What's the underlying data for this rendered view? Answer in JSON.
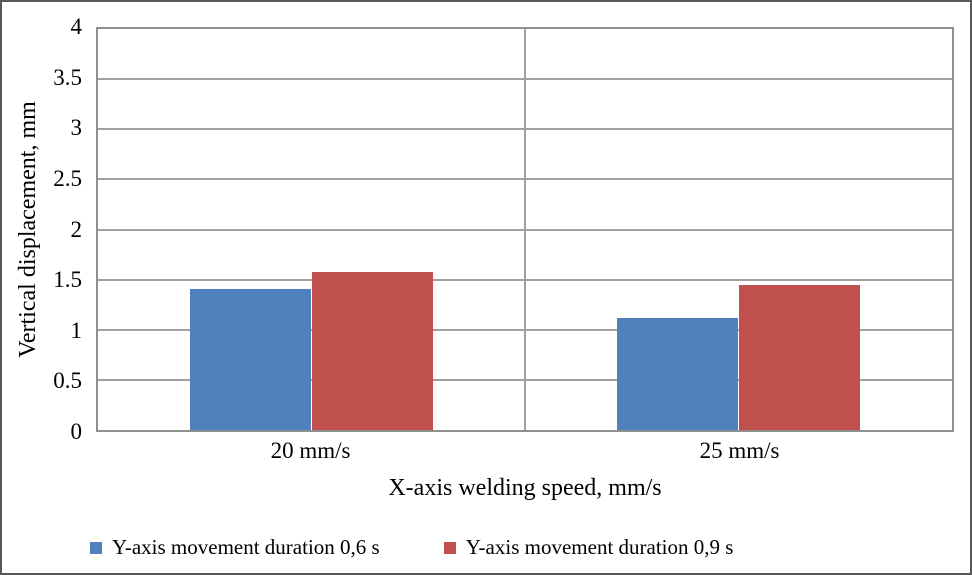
{
  "figure": {
    "background": "#ffffff",
    "outer_border_color": "#595959"
  },
  "chart_data": {
    "type": "bar",
    "title": "",
    "categories": [
      "20 mm/s",
      "25 mm/s"
    ],
    "series": [
      {
        "name": "Y-axis movement duration 0,6 s",
        "color": "#4F81BD",
        "values": [
          1.41,
          1.12
        ]
      },
      {
        "name": "Y-axis movement duration 0,9 s",
        "color": "#C0504D",
        "values": [
          1.58,
          1.45
        ]
      }
    ],
    "xlabel": "X-axis welding speed, mm/s",
    "ylabel": "Vertical displacement, mm",
    "ylim": [
      0,
      4
    ],
    "ytick_step": 0.5,
    "yticks": [
      0,
      0.5,
      1,
      1.5,
      2,
      2.5,
      3,
      3.5,
      4
    ],
    "grid": "horizontal major gridlines on, vertical category separator on",
    "gridline_color": "#a0a0a0",
    "axis_color": "#8f8f8f",
    "legend_position": "bottom",
    "text_color": "#000000"
  }
}
